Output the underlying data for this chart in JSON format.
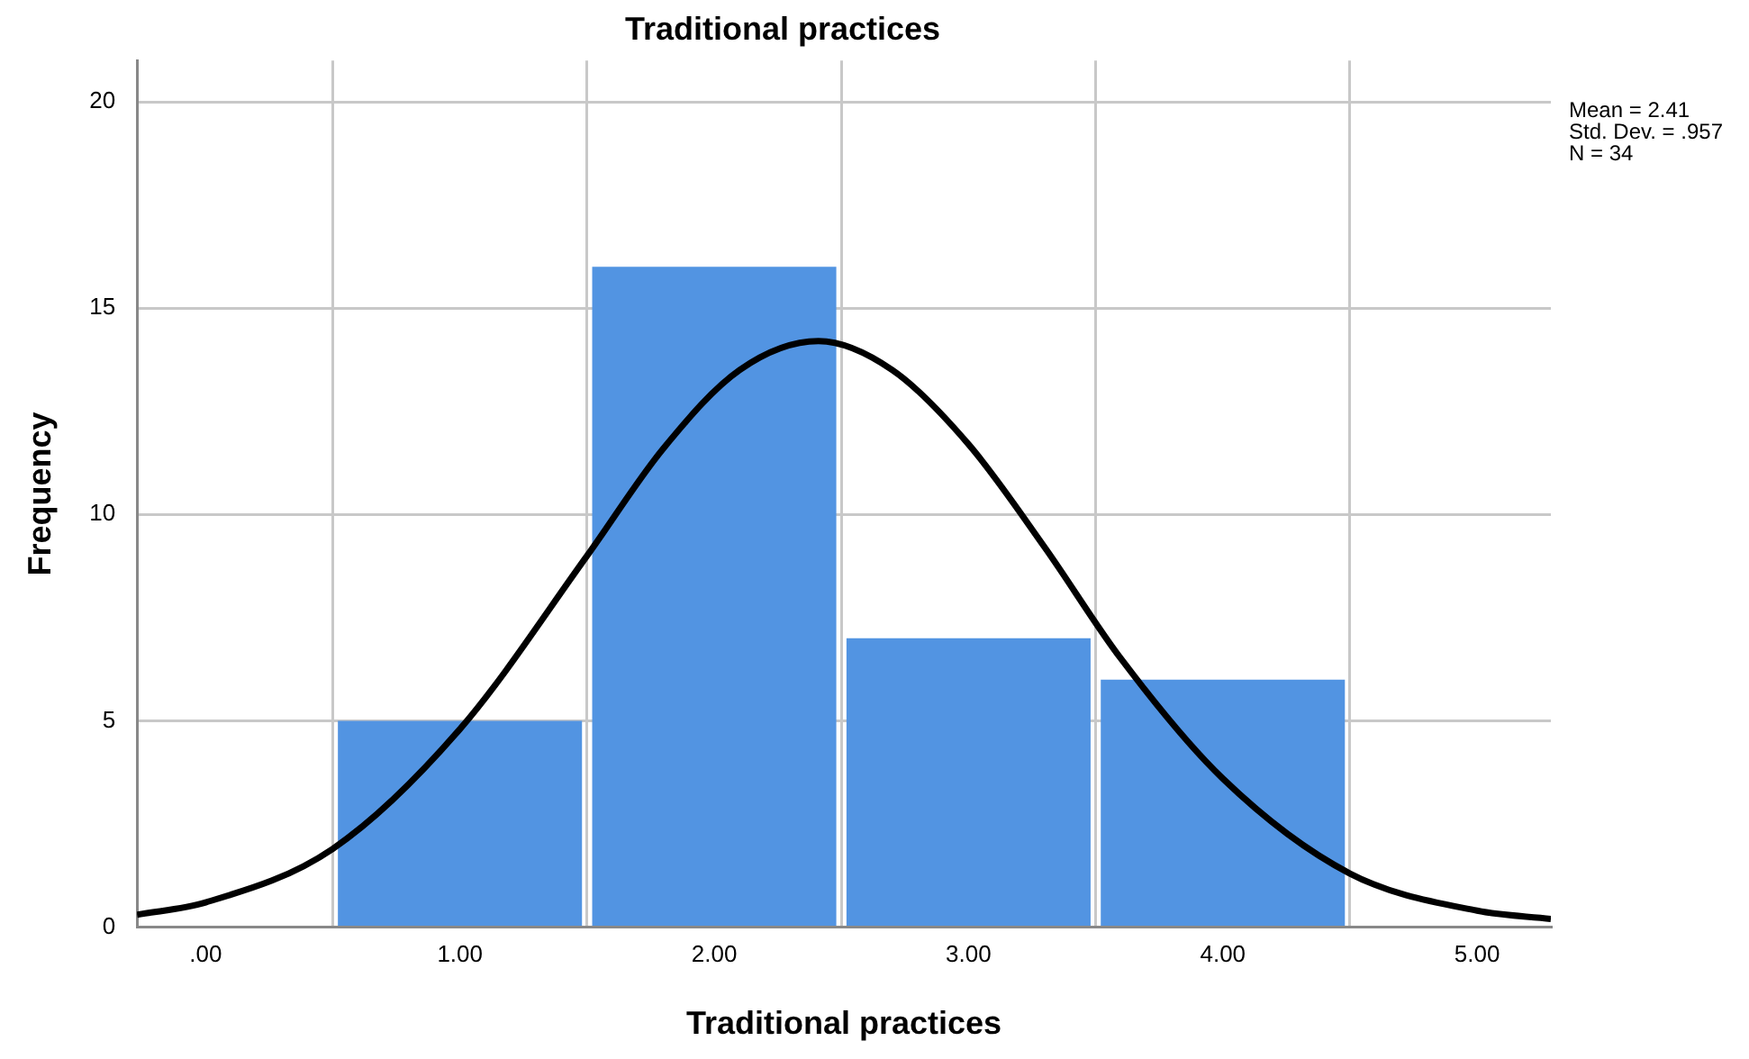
{
  "chart_data": {
    "type": "histogram",
    "title": "Traditional practices",
    "xlabel": "Traditional practices",
    "ylabel": "Frequency",
    "bins": [
      0.5,
      1.5,
      2.5,
      3.5,
      4.5
    ],
    "values": [
      5,
      16,
      7,
      6
    ],
    "color": "#5294e2",
    "series": [
      {
        "type": "line",
        "color": "#000000",
        "x": [
          -0.27,
          0,
          0.5,
          1,
          1.5,
          1.8,
          2.1,
          2.41,
          2.7,
          3,
          3.3,
          3.6,
          4,
          4.5,
          5,
          5.29
        ],
        "values": [
          0.3,
          0.6,
          1.9,
          4.8,
          9,
          11.6,
          13.5,
          14.2,
          13.5,
          11.7,
          9.2,
          6.5,
          3.6,
          1.3,
          0.4,
          0.2
        ]
      }
    ],
    "xlim": [
      -0.27,
      5.29
    ],
    "xticks": [
      {
        "value": 0,
        "label": ".00"
      },
      {
        "value": 1,
        "label": "1.00"
      },
      {
        "value": 2,
        "label": "2.00"
      },
      {
        "value": 3,
        "label": "3.00"
      },
      {
        "value": 4,
        "label": "4.00"
      },
      {
        "value": 5,
        "label": "5.00"
      }
    ],
    "ylim": [
      0,
      21
    ],
    "yticks": [
      0,
      5,
      10,
      15,
      20
    ],
    "grid": true,
    "annotations": [
      "Mean = 2.41",
      "Std. Dev. = .957",
      "N = 34"
    ]
  }
}
